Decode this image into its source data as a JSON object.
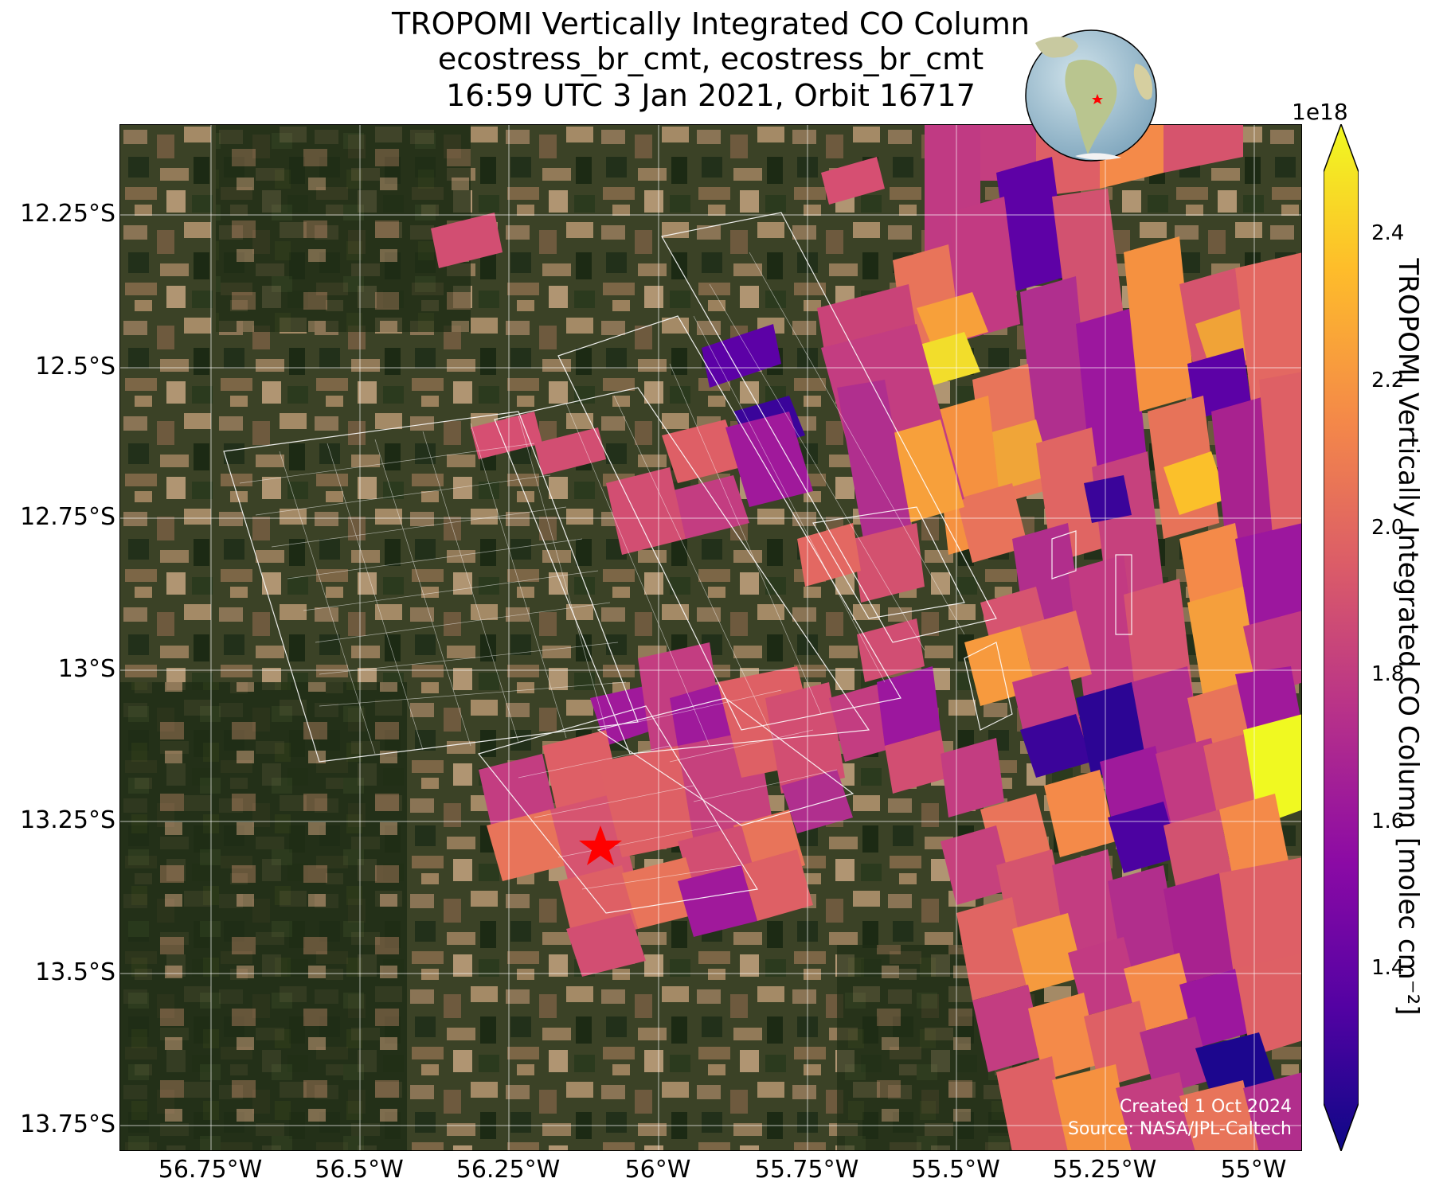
{
  "title": {
    "line1": "TROPOMI Vertically Integrated CO Column",
    "line2": "ecostress_br_cmt, ecostress_br_cmt",
    "line3": "16:59 UTC 3 Jan 2021, Orbit 16717"
  },
  "axes": {
    "lat_labels": [
      "12.25°S",
      "12.5°S",
      "12.75°S",
      "13°S",
      "13.25°S",
      "13.5°S",
      "13.75°S"
    ],
    "lon_labels": [
      "56.75°W",
      "56.5°W",
      "56.25°W",
      "56°W",
      "55.75°W",
      "55.5°W",
      "55.25°W",
      "55°W"
    ]
  },
  "credits": {
    "created": "Created 1 Oct 2024",
    "source": "Source: NASA/JPL-Caltech"
  },
  "colorbar": {
    "exponent": "1e18",
    "label": "TROPOMI Vertically Integrated CO Column [molec cm⁻²]",
    "ticks": [
      "2.4",
      "2.2",
      "2.0",
      "1.8",
      "1.6",
      "1.4"
    ],
    "min": 1.2,
    "max": 2.5,
    "colormap": "plasma",
    "colors": [
      "#0d0887",
      "#5302a3",
      "#8b0aa5",
      "#b83289",
      "#db5c68",
      "#f48849",
      "#febd2a",
      "#f0f921"
    ]
  },
  "marker": {
    "type": "red-star",
    "lat": -13.29,
    "lon": -56.09,
    "color": "#ff0000"
  },
  "inset": {
    "type": "globe",
    "highlight": "South America (red star)"
  }
}
